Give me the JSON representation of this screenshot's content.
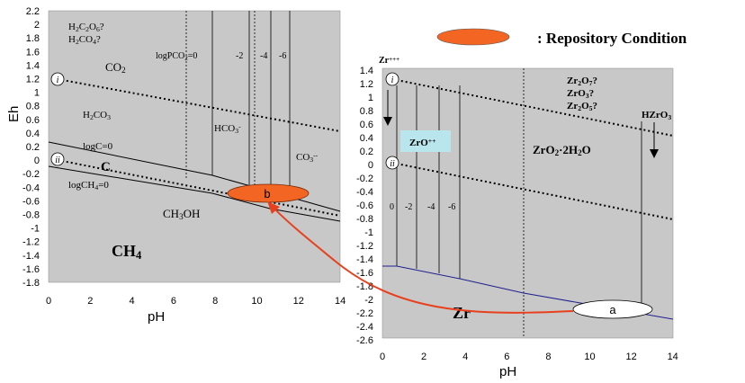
{
  "legend": {
    "label": ": Repository Condition",
    "swatch_color": "#f26522"
  },
  "colors": {
    "plot_bg": "#c8c8c8",
    "arrow": "#e8401c",
    "ellipse_b": "#f26522",
    "zr_boundary": "#1f1f8f",
    "zro_box": "#b8e6ec"
  },
  "carbon_panel": {
    "chart_data": {
      "type": "phase-diagram",
      "xlabel": "pH",
      "ylabel": "Eh",
      "xlim": [
        0,
        14
      ],
      "ylim": [
        -1.8,
        2.2
      ],
      "x_ticks": [
        "0",
        "2",
        "4",
        "6",
        "8",
        "10",
        "12",
        "14"
      ],
      "y_ticks": [
        "2.2",
        "2",
        "1.8",
        "1.6",
        "1.4",
        "1.2",
        "1",
        "0.8",
        "0.6",
        "0.4",
        "0.2",
        "0",
        "-0.2",
        "-0.4",
        "-0.6",
        "-0.8",
        "-1",
        "-1.2",
        "-1.4",
        "-1.6",
        "-1.8"
      ],
      "water_stability_lines": [
        {
          "marker": "i",
          "points": [
            [
              0,
              1.23
            ],
            [
              14,
              0.4
            ]
          ]
        },
        {
          "marker": "ii",
          "points": [
            [
              0,
              0.0
            ],
            [
              14,
              -0.83
            ]
          ]
        }
      ],
      "boundaries": {
        "logC_upper": [
          [
            0,
            0.21
          ],
          [
            8,
            -0.35
          ],
          [
            14,
            -0.72
          ]
        ],
        "logCH4_lower": [
          [
            0,
            0.0
          ],
          [
            8,
            -0.5
          ],
          [
            14,
            -0.9
          ]
        ],
        "pco2_lines": [
          {
            "label": "logPCO2=0",
            "x": 6.6
          },
          {
            "label": "-2",
            "x": 7.8
          },
          {
            "label": "-4",
            "x": 9.7
          },
          {
            "label": "-6",
            "x": 10.6
          }
        ],
        "hco3_limits": [
          9.7,
          10.1,
          10.7,
          11.6
        ]
      },
      "labels": {
        "h2c2o6": "H2C2O6?",
        "h2co4": "H2CO4?",
        "logpco2": "logPCO2=0",
        "m2": "-2",
        "m4": "-4",
        "m6": "-6",
        "co2": "CO2",
        "h2co3": "H2CO3",
        "hco3": "HCO3-",
        "co3": "CO3--",
        "logc": "logC=0",
        "c": "C",
        "logch4": "logCH4=0",
        "ch3oh": "CH3OH",
        "ch4": "CH4"
      },
      "markers": [
        "i",
        "ii"
      ],
      "ellipse_b": {
        "label": "b",
        "x": 10.1,
        "y": -0.52
      }
    }
  },
  "zr_panel": {
    "chart_data": {
      "type": "phase-diagram",
      "xlabel": "pH",
      "ylabel": "",
      "xlim": [
        0,
        14
      ],
      "ylim": [
        -2.6,
        1.4
      ],
      "x_ticks": [
        "0",
        "2",
        "4",
        "6",
        "8",
        "10",
        "12",
        "14"
      ],
      "y_ticks": [
        "1.4",
        "1.2",
        "1",
        "0.8",
        "0.6",
        "0.4",
        "0.2",
        "0",
        "-0.2",
        "-0.4",
        "-0.6",
        "-0.8",
        "-1",
        "-1.2",
        "-1.4",
        "-1.6",
        "-1.8",
        "-2",
        "-2.2",
        "-2.4",
        "-2.6"
      ],
      "water_stability_lines": [
        {
          "marker": "i",
          "points": [
            [
              0,
              1.23
            ],
            [
              14,
              0.4
            ]
          ]
        },
        {
          "marker": "ii",
          "points": [
            [
              0,
              0.0
            ],
            [
              14,
              -0.83
            ]
          ]
        }
      ],
      "zr_boundary": [
        [
          0,
          -1.58
        ],
        [
          1,
          -1.6
        ],
        [
          14,
          -2.38
        ]
      ],
      "solubility_lines": [
        {
          "label": "0",
          "x": 0.6
        },
        {
          "label": "-2",
          "x": 1.6
        },
        {
          "label": "-4",
          "x": 2.7
        },
        {
          "label": "-6",
          "x": 3.7
        }
      ],
      "dotted_vertical_x": 6.9,
      "hzro3_line_x": 12.4,
      "labels": {
        "zr4": "Zr+++",
        "zr2o7": "Zr2O7?",
        "zro3": "ZrO3?",
        "zr2o5": "Zr2O5?",
        "hzro3": "HZrO3",
        "zro": "ZrO++",
        "zro2": "ZrO2·2H2O",
        "zr": "Zr",
        "l0": "0",
        "l2": "-2",
        "l4": "-4",
        "l6": "-6"
      },
      "markers": [
        "i",
        "ii"
      ],
      "ellipse_a": {
        "label": "a",
        "x": 11.1,
        "y": -2.2
      }
    }
  }
}
